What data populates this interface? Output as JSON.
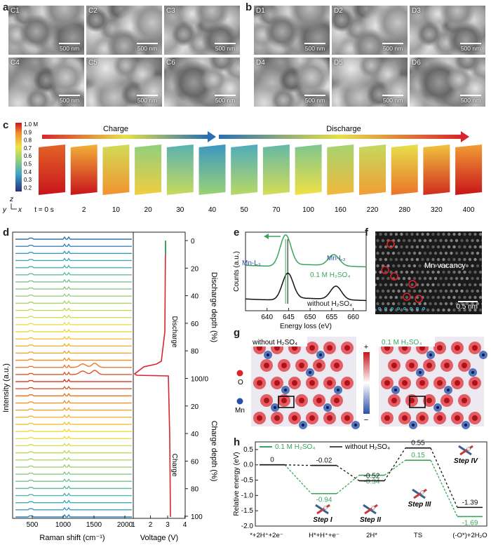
{
  "panels": {
    "a": "a",
    "b": "b",
    "c": "c",
    "d": "d",
    "e": "e",
    "f": "f",
    "g": "g",
    "h": "h"
  },
  "sem_a": [
    {
      "tag": "C1",
      "scale": "500 nm"
    },
    {
      "tag": "C2",
      "scale": "500 nm"
    },
    {
      "tag": "C3",
      "scale": "500 nm"
    },
    {
      "tag": "C4",
      "scale": "500 nm"
    },
    {
      "tag": "C5",
      "scale": "500 nm"
    },
    {
      "tag": "C6",
      "scale": "500 nm"
    }
  ],
  "sem_b": [
    {
      "tag": "D1",
      "scale": "500 nm"
    },
    {
      "tag": "D2",
      "scale": "500 nm"
    },
    {
      "tag": "D3",
      "scale": "500 nm"
    },
    {
      "tag": "D4",
      "scale": "500 nm"
    },
    {
      "tag": "D5",
      "scale": "500 nm"
    },
    {
      "tag": "D6",
      "scale": "500 nm"
    }
  ],
  "panel_c": {
    "charge_label": "Charge",
    "discharge_label": "Discharge",
    "colorbar_ticks": [
      "1.0 M",
      "0.9",
      "0.8",
      "0.7",
      "0.6",
      "0.5",
      "0.4",
      "0.3",
      "0.2"
    ],
    "axis_z": "z",
    "axis_y": "y",
    "axis_x": "x",
    "times": [
      "t = 0 s",
      "2",
      "10",
      "20",
      "30",
      "40",
      "50",
      "70",
      "100",
      "160",
      "220",
      "280",
      "320",
      "400"
    ],
    "slab_fill": [
      1.0,
      0.85,
      0.65,
      0.5,
      0.35,
      0.25,
      0.32,
      0.38,
      0.45,
      0.55,
      0.62,
      0.7,
      0.8,
      0.9
    ]
  },
  "panel_d": {
    "ylabel": "Intensity (a.u.)",
    "xlabel_raman": "Raman shift (cm⁻¹)",
    "xticks_raman": [
      "500",
      "1000",
      "1500",
      "2000"
    ],
    "xlabel_voltage": "Voltage (V)",
    "xticks_voltage": [
      "1",
      "2",
      "3",
      "4"
    ],
    "discharge_label": "Discharge",
    "charge_label": "Charge",
    "depth_discharge_label": "Discharge depth (%)",
    "depth_charge_label": "Charge depth (%)",
    "depth_ticks": [
      "0",
      "20",
      "40",
      "60",
      "80",
      "100/0",
      "20",
      "40",
      "60",
      "80",
      "100"
    ],
    "n_spectra": 40
  },
  "chart_data": [
    {
      "type": "line",
      "title": "",
      "xlabel": "Energy loss (eV)",
      "ylabel": "Counts (a.u.)",
      "xlim": [
        635,
        663
      ],
      "xticks": [
        640,
        645,
        650,
        655,
        660
      ],
      "series": [
        {
          "name": "0.1 M H₂SO₄",
          "color": "#3aa55a",
          "peaks": [
            {
              "x": 644.3,
              "h": 1.0
            },
            {
              "x": 655.5,
              "h": 0.35
            }
          ]
        },
        {
          "name": "without H₂SO₄",
          "color": "#111111",
          "peaks": [
            {
              "x": 644.8,
              "h": 0.85
            },
            {
              "x": 656.0,
              "h": 0.42
            }
          ]
        }
      ],
      "annotations": [
        "Mn-L₃",
        "Mn-L₂"
      ]
    },
    {
      "type": "line",
      "title": "",
      "ylabel": "Relative energy (eV)",
      "ylim": [
        -2.0,
        0.75
      ],
      "yticks": [
        0.5,
        0.0,
        -0.5,
        -1.0,
        -1.5,
        -2.0
      ],
      "categories": [
        "*+2H⁺+2e⁻",
        "H*+H⁺+e⁻",
        "2H*",
        "TS",
        "(-O*)+2H₂O"
      ],
      "series": [
        {
          "name": "0.1 M H₂SO₄",
          "color": "#3aa55a",
          "values": [
            0,
            -0.94,
            -0.34,
            0.15,
            -1.69
          ],
          "labels": [
            "",
            "-0.94",
            "-0.34",
            "0.15",
            "-1.69"
          ]
        },
        {
          "name": "without H₂SO₄",
          "color": "#111111",
          "values": [
            0,
            -0.02,
            -0.52,
            0.55,
            -1.39
          ],
          "labels": [
            "0",
            "-0.02",
            "-0.52",
            "0.55",
            "-1.39"
          ]
        }
      ],
      "steps": [
        "Step I",
        "Step II",
        "Step III",
        "Step IV"
      ]
    }
  ],
  "panel_f": {
    "label": "Mn vacancy",
    "scale": "0.5 nm"
  },
  "panel_g": {
    "left_title": "without H₂SO₄",
    "right_title": "0.1 M H₂SO₄",
    "legend_o": "O",
    "legend_mn": "Mn",
    "plus": "+",
    "minus": "−"
  },
  "colors": {
    "green": "#3aa55a",
    "black": "#111111",
    "red": "#d8262c",
    "blue": "#2a4fa8"
  }
}
